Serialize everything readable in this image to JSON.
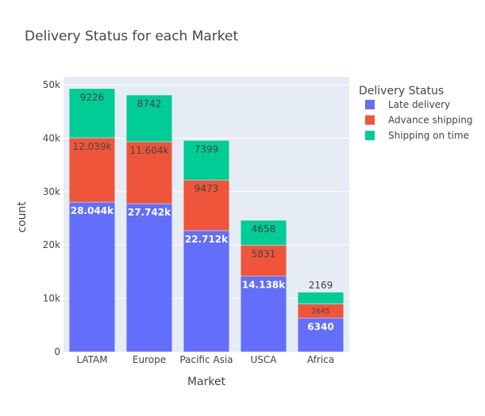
{
  "chart_data": {
    "type": "bar",
    "barmode": "stack",
    "title": "Delivery Status for each Market",
    "xlabel": "Market",
    "ylabel": "count",
    "ylim": [
      0,
      51500
    ],
    "yticks": [
      0,
      10000,
      20000,
      30000,
      40000,
      50000
    ],
    "ytick_labels": [
      "0",
      "10k",
      "20k",
      "30k",
      "40k",
      "50k"
    ],
    "grid": true,
    "legend_title": "Delivery Status",
    "legend_position": "right",
    "categories": [
      "LATAM",
      "Europe",
      "Pacific Asia",
      "USCA",
      "Africa"
    ],
    "series": [
      {
        "name": "Late delivery",
        "color": "#636efa",
        "values": [
          28044,
          27742,
          22712,
          14138,
          6340
        ],
        "labels": [
          "28.044k",
          "27.742k",
          "22.712k",
          "14.138k",
          "6340"
        ]
      },
      {
        "name": "Advance shipping",
        "color": "#ef553b",
        "values": [
          12039,
          11604,
          9473,
          5831,
          2645
        ],
        "labels": [
          "12.039k",
          "11.604k",
          "9473",
          "5831",
          "2645"
        ]
      },
      {
        "name": "Shipping on time",
        "color": "#00cc96",
        "values": [
          9226,
          8742,
          7399,
          4658,
          2169
        ],
        "labels": [
          "9226",
          "8742",
          "7399",
          "4658",
          "2169"
        ]
      }
    ]
  },
  "colors": {
    "plot_background": "#e5ecf6",
    "grid": "#ffffff",
    "text": "#444444"
  }
}
